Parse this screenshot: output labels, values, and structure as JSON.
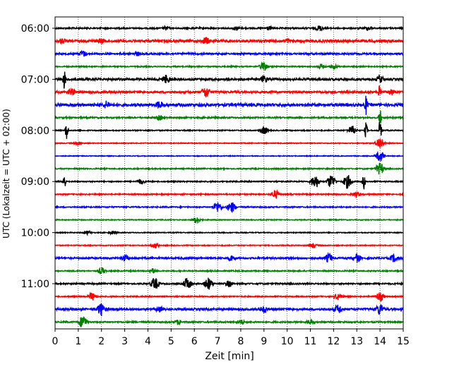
{
  "chart_data": {
    "type": "line",
    "title": "",
    "xlabel": "Zeit  [min]",
    "ylabel": "UTC (Lokalzeit = UTC + 02:00)",
    "xlim": [
      0,
      15
    ],
    "x_ticks": [
      "0",
      "1",
      "2",
      "3",
      "4",
      "5",
      "6",
      "7",
      "8",
      "9",
      "10",
      "11",
      "12",
      "13",
      "14",
      "15"
    ],
    "y_tick_labels": [
      "06:00",
      "07:00",
      "08:00",
      "09:00",
      "10:00",
      "11:00"
    ],
    "grid": "vertical dotted at each minute",
    "trace_interval_min": 15,
    "trace_colors": [
      "#000000",
      "#ff0000",
      "#0000ff",
      "#008000"
    ],
    "traces": [
      {
        "start": "06:00",
        "amplitude": 0.1,
        "events": [
          {
            "t": 4.8,
            "a": 0.35
          },
          {
            "t": 7.8,
            "a": 0.35
          },
          {
            "t": 9.2,
            "a": 0.35
          },
          {
            "t": 11.4,
            "a": 0.45
          },
          {
            "t": 13.5,
            "a": 0.35
          }
        ]
      },
      {
        "start": "06:15",
        "amplitude": 0.18,
        "events": [
          {
            "t": 0.3,
            "a": 0.45
          },
          {
            "t": 2.0,
            "a": 0.45
          },
          {
            "t": 6.5,
            "a": 0.6
          },
          {
            "t": 10.0,
            "a": 0.4
          }
        ]
      },
      {
        "start": "06:30",
        "amplitude": 0.12,
        "events": [
          {
            "t": 1.2,
            "a": 0.5
          },
          {
            "t": 3.5,
            "a": 0.4
          }
        ]
      },
      {
        "start": "06:45",
        "amplitude": 0.08,
        "events": [
          {
            "t": 9.0,
            "a": 0.7
          },
          {
            "t": 11.5,
            "a": 0.4
          },
          {
            "t": 12.0,
            "a": 0.4
          }
        ]
      },
      {
        "start": "07:00",
        "amplitude": 0.15,
        "events": [
          {
            "t": 0.4,
            "a": 1.5
          },
          {
            "t": 4.8,
            "a": 0.7
          },
          {
            "t": 9.0,
            "a": 0.6
          },
          {
            "t": 14.0,
            "a": 0.6
          }
        ]
      },
      {
        "start": "07:15",
        "amplitude": 0.15,
        "events": [
          {
            "t": 0.7,
            "a": 0.6
          },
          {
            "t": 6.5,
            "a": 0.9
          },
          {
            "t": 14.0,
            "a": 1.6
          },
          {
            "t": 14.5,
            "a": 0.5
          }
        ]
      },
      {
        "start": "07:30",
        "amplitude": 0.2,
        "events": [
          {
            "t": 2.2,
            "a": 0.6
          },
          {
            "t": 4.5,
            "a": 0.6
          },
          {
            "t": 13.4,
            "a": 1.5
          }
        ]
      },
      {
        "start": "07:45",
        "amplitude": 0.1,
        "events": [
          {
            "t": 4.5,
            "a": 0.4
          },
          {
            "t": 14.0,
            "a": 1.3
          }
        ]
      },
      {
        "start": "08:00",
        "amplitude": 0.07,
        "events": [
          {
            "t": 0.5,
            "a": 1.4
          },
          {
            "t": 9.0,
            "a": 0.6
          },
          {
            "t": 12.8,
            "a": 0.7
          },
          {
            "t": 13.4,
            "a": 1.2
          },
          {
            "t": 14.0,
            "a": 1.5
          }
        ]
      },
      {
        "start": "08:15",
        "amplitude": 0.06,
        "events": [
          {
            "t": 1.0,
            "a": 0.3
          },
          {
            "t": 14.0,
            "a": 0.9
          }
        ]
      },
      {
        "start": "08:30",
        "amplitude": 0.05,
        "events": [
          {
            "t": 14.0,
            "a": 0.8
          }
        ]
      },
      {
        "start": "08:45",
        "amplitude": 0.08,
        "events": [
          {
            "t": 14.0,
            "a": 0.9
          }
        ]
      },
      {
        "start": "09:00",
        "amplitude": 0.08,
        "events": [
          {
            "t": 0.4,
            "a": 1.2
          },
          {
            "t": 3.7,
            "a": 0.4
          },
          {
            "t": 11.2,
            "a": 1.0
          },
          {
            "t": 11.9,
            "a": 1.0
          },
          {
            "t": 12.6,
            "a": 1.0
          },
          {
            "t": 13.3,
            "a": 1.2
          }
        ]
      },
      {
        "start": "09:15",
        "amplitude": 0.08,
        "events": [
          {
            "t": 9.5,
            "a": 0.6
          },
          {
            "t": 13.0,
            "a": 0.4
          }
        ]
      },
      {
        "start": "09:30",
        "amplitude": 0.08,
        "events": [
          {
            "t": 7.0,
            "a": 0.8
          },
          {
            "t": 7.6,
            "a": 0.8
          }
        ]
      },
      {
        "start": "09:45",
        "amplitude": 0.06,
        "events": [
          {
            "t": 6.1,
            "a": 0.5
          }
        ]
      },
      {
        "start": "10:00",
        "amplitude": 0.06,
        "events": [
          {
            "t": 1.4,
            "a": 0.3
          },
          {
            "t": 2.5,
            "a": 0.3
          }
        ]
      },
      {
        "start": "10:15",
        "amplitude": 0.06,
        "events": [
          {
            "t": 4.3,
            "a": 0.4
          },
          {
            "t": 11.1,
            "a": 0.4
          }
        ]
      },
      {
        "start": "10:30",
        "amplitude": 0.12,
        "events": [
          {
            "t": 3.0,
            "a": 0.5
          },
          {
            "t": 7.6,
            "a": 0.5
          },
          {
            "t": 11.8,
            "a": 0.7
          },
          {
            "t": 13.0,
            "a": 0.7
          },
          {
            "t": 14.6,
            "a": 0.6
          }
        ]
      },
      {
        "start": "10:45",
        "amplitude": 0.08,
        "events": [
          {
            "t": 2.0,
            "a": 0.5
          },
          {
            "t": 4.2,
            "a": 0.4
          }
        ]
      },
      {
        "start": "11:00",
        "amplitude": 0.1,
        "events": [
          {
            "t": 4.3,
            "a": 0.9
          },
          {
            "t": 5.7,
            "a": 0.9
          },
          {
            "t": 6.6,
            "a": 0.9
          },
          {
            "t": 7.5,
            "a": 0.5
          }
        ]
      },
      {
        "start": "11:15",
        "amplitude": 0.08,
        "events": [
          {
            "t": 1.6,
            "a": 0.6
          },
          {
            "t": 12.2,
            "a": 0.5
          },
          {
            "t": 14.0,
            "a": 0.7
          }
        ]
      },
      {
        "start": "11:30",
        "amplitude": 0.15,
        "events": [
          {
            "t": 2.0,
            "a": 1.0
          },
          {
            "t": 4.5,
            "a": 0.5
          },
          {
            "t": 9.0,
            "a": 0.6
          },
          {
            "t": 12.2,
            "a": 0.7
          },
          {
            "t": 14.0,
            "a": 0.9
          }
        ]
      },
      {
        "start": "11:45",
        "amplitude": 0.1,
        "events": [
          {
            "t": 1.2,
            "a": 1.0
          },
          {
            "t": 5.3,
            "a": 0.4
          },
          {
            "t": 8.0,
            "a": 0.4
          },
          {
            "t": 11.0,
            "a": 0.4
          }
        ]
      }
    ]
  }
}
